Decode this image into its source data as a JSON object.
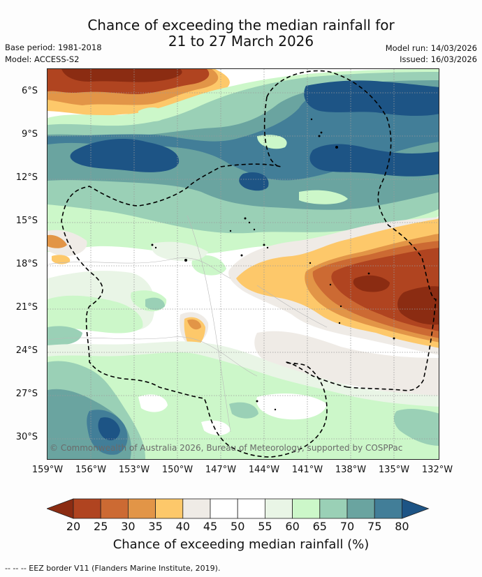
{
  "title": {
    "line1": "Chance of exceeding the median rainfall for",
    "line2": "21 to 27 March 2026"
  },
  "meta": {
    "base_period": "Base period: 1981-2018",
    "model": "Model: ACCESS-S2",
    "model_run": "Model run: 14/03/2026",
    "issued": "Issued: 16/03/2026"
  },
  "map": {
    "lat_labels": [
      "6°S",
      "9°S",
      "12°S",
      "15°S",
      "18°S",
      "21°S",
      "24°S",
      "27°S",
      "30°S"
    ],
    "lon_labels": [
      "159°W",
      "156°W",
      "153°W",
      "150°W",
      "147°W",
      "144°W",
      "141°W",
      "138°W",
      "135°W",
      "132°W"
    ],
    "copyright": "© Commonwealth of Australia 2026, Bureau of Meteorology, supported by COSPPac",
    "grid": true,
    "eez_style": "dashed"
  },
  "colorbar": {
    "ticks": [
      "20",
      "25",
      "30",
      "35",
      "40",
      "45",
      "50",
      "55",
      "60",
      "65",
      "70",
      "75",
      "80"
    ],
    "colors": [
      "#8b2c12",
      "#b04420",
      "#cc6a33",
      "#e29547",
      "#fdc86a",
      "#efebe6",
      "#ffffff",
      "#ffffff",
      "#e9f5e6",
      "#ccf7c9",
      "#9ad0b6",
      "#6aa4a0",
      "#427e98",
      "#1d5485"
    ],
    "label": "Chance of exceeding median rainfall (%)"
  },
  "footer": "--  --  -- EEZ border V11 (Flanders Marine Institute, 2019)."
}
